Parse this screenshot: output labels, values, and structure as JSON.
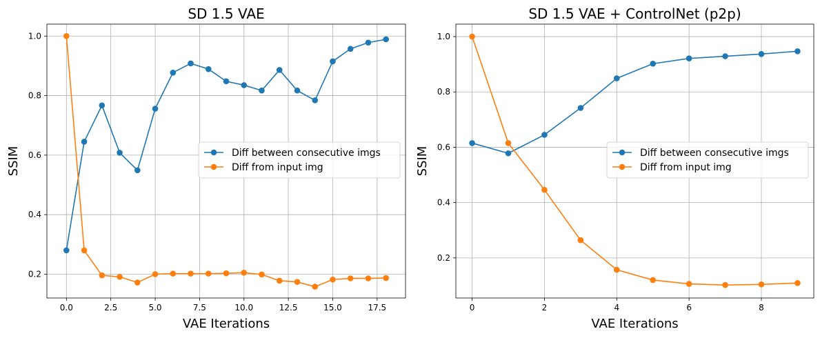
{
  "chart_data": [
    {
      "type": "line",
      "title": "SD 1.5 VAE",
      "xlabel": "VAE Iterations",
      "ylabel": "SSIM",
      "xlim": [
        -1.1,
        19.1
      ],
      "ylim": [
        0.12,
        1.04
      ],
      "xticks": [
        0.0,
        2.5,
        5.0,
        7.5,
        10.0,
        12.5,
        15.0,
        17.5
      ],
      "xtick_labels": [
        "0.0",
        "2.5",
        "5.0",
        "7.5",
        "10.0",
        "12.5",
        "15.0",
        "17.5"
      ],
      "yticks": [
        0.2,
        0.4,
        0.6,
        0.8,
        1.0
      ],
      "ytick_labels": [
        "0.2",
        "0.4",
        "0.6",
        "0.8",
        "1.0"
      ],
      "grid": true,
      "legend_position": "center-right",
      "x": [
        0,
        1,
        2,
        3,
        4,
        5,
        6,
        7,
        8,
        9,
        10,
        11,
        12,
        13,
        14,
        15,
        16,
        17,
        18
      ],
      "series": [
        {
          "name": "Diff between consecutive imgs",
          "color": "#1f77b4",
          "values": [
            0.28,
            0.645,
            0.767,
            0.608,
            0.549,
            0.756,
            0.877,
            0.908,
            0.889,
            0.848,
            0.835,
            0.817,
            0.886,
            0.817,
            0.784,
            0.915,
            0.957,
            0.978,
            0.989
          ]
        },
        {
          "name": "Diff from input img",
          "color": "#ff7f0e",
          "values": [
            1.0,
            0.28,
            0.196,
            0.191,
            0.172,
            0.2,
            0.202,
            0.202,
            0.202,
            0.203,
            0.205,
            0.199,
            0.178,
            0.174,
            0.158,
            0.182,
            0.186,
            0.186,
            0.187
          ]
        }
      ]
    },
    {
      "type": "line",
      "title": "SD 1.5 VAE + ControlNet (p2p)",
      "xlabel": "VAE Iterations",
      "ylabel": "SSIM",
      "xlim": [
        -0.45,
        9.45
      ],
      "ylim": [
        0.055,
        1.045
      ],
      "xticks": [
        0,
        2,
        4,
        6,
        8
      ],
      "xtick_labels": [
        "0",
        "2",
        "4",
        "6",
        "8"
      ],
      "yticks": [
        0.2,
        0.4,
        0.6,
        0.8,
        1.0
      ],
      "ytick_labels": [
        "0.2",
        "0.4",
        "0.6",
        "0.8",
        "1.0"
      ],
      "grid": true,
      "legend_position": "center-right",
      "x": [
        0,
        1,
        2,
        3,
        4,
        5,
        6,
        7,
        8,
        9
      ],
      "series": [
        {
          "name": "Diff between consecutive imgs",
          "color": "#1f77b4",
          "values": [
            0.615,
            0.578,
            0.645,
            0.742,
            0.849,
            0.902,
            0.921,
            0.929,
            0.937,
            0.947
          ]
        },
        {
          "name": "Diff from input img",
          "color": "#ff7f0e",
          "values": [
            1.0,
            0.615,
            0.446,
            0.264,
            0.157,
            0.12,
            0.106,
            0.102,
            0.104,
            0.109
          ]
        }
      ]
    }
  ]
}
